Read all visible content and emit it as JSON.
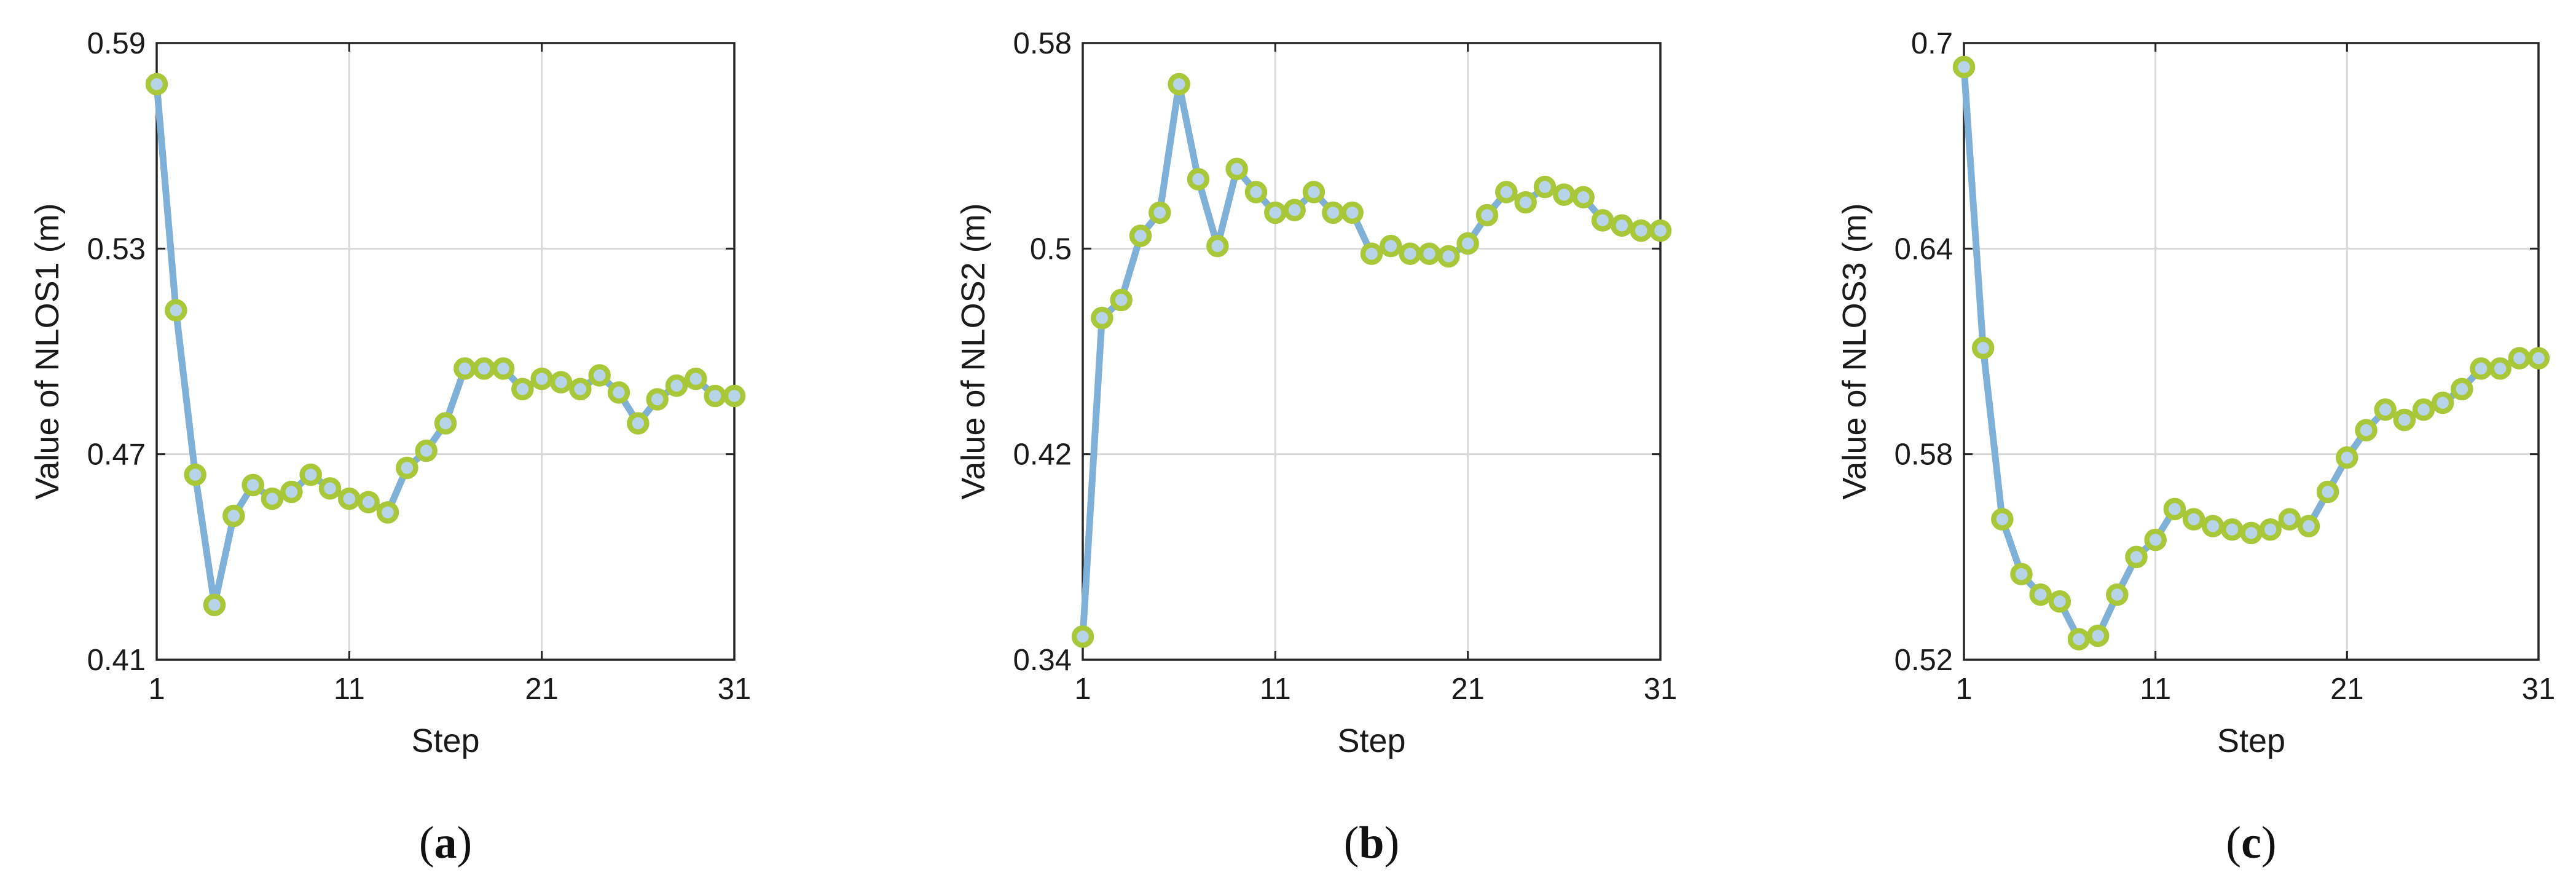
{
  "colors": {
    "line": "#7fb0d8",
    "marker_edge": "#a8c83a",
    "marker_face": "#b8d4e8",
    "grid": "#d9d9d9",
    "axes": "#262626"
  },
  "chart_data": [
    {
      "type": "line",
      "panel_label": "a",
      "xlabel": "Step",
      "ylabel": "Value of NLOS1 (m)",
      "xlim": [
        1,
        31
      ],
      "ylim": [
        0.41,
        0.59
      ],
      "xticks": [
        1,
        11,
        21,
        31
      ],
      "yticks": [
        "0.41",
        "0.47",
        "0.53",
        "0.59"
      ],
      "grid": true,
      "x": [
        1,
        2,
        3,
        4,
        5,
        6,
        7,
        8,
        9,
        10,
        11,
        12,
        13,
        14,
        15,
        16,
        17,
        18,
        19,
        20,
        21,
        22,
        23,
        24,
        25,
        26,
        27,
        28,
        29,
        30,
        31
      ],
      "values": [
        0.578,
        0.512,
        0.464,
        0.426,
        0.452,
        0.461,
        0.457,
        0.459,
        0.464,
        0.46,
        0.457,
        0.456,
        0.453,
        0.466,
        0.471,
        0.479,
        0.495,
        0.495,
        0.495,
        0.489,
        0.492,
        0.491,
        0.489,
        0.493,
        0.488,
        0.479,
        0.486,
        0.49,
        0.492,
        0.487,
        0.487
      ]
    },
    {
      "type": "line",
      "panel_label": "b",
      "xlabel": "Step",
      "ylabel": "Value of NLOS2 (m)",
      "xlim": [
        1,
        31
      ],
      "ylim": [
        0.34,
        0.58
      ],
      "xticks": [
        1,
        11,
        21,
        31
      ],
      "yticks": [
        "0.34",
        "0.42",
        "0.5",
        "0.58"
      ],
      "grid": true,
      "x": [
        1,
        2,
        3,
        4,
        5,
        6,
        7,
        8,
        9,
        10,
        11,
        12,
        13,
        14,
        15,
        16,
        17,
        18,
        19,
        20,
        21,
        22,
        23,
        24,
        25,
        26,
        27,
        28,
        29,
        30,
        31
      ],
      "values": [
        0.349,
        0.473,
        0.48,
        0.505,
        0.514,
        0.564,
        0.527,
        0.501,
        0.531,
        0.522,
        0.514,
        0.515,
        0.522,
        0.514,
        0.514,
        0.498,
        0.501,
        0.498,
        0.498,
        0.497,
        0.502,
        0.513,
        0.522,
        0.518,
        0.524,
        0.521,
        0.52,
        0.511,
        0.509,
        0.507,
        0.507
      ]
    },
    {
      "type": "line",
      "panel_label": "c",
      "xlabel": "Step",
      "ylabel": "Value of NLOS3 (m)",
      "xlim": [
        1,
        31
      ],
      "ylim": [
        0.52,
        0.7
      ],
      "xticks": [
        1,
        11,
        21,
        31
      ],
      "yticks": [
        "0.52",
        "0.58",
        "0.64",
        "0.7"
      ],
      "grid": true,
      "x": [
        1,
        2,
        3,
        4,
        5,
        6,
        7,
        8,
        9,
        10,
        11,
        12,
        13,
        14,
        15,
        16,
        17,
        18,
        19,
        20,
        21,
        22,
        23,
        24,
        25,
        26,
        27,
        28,
        29,
        30,
        31
      ],
      "values": [
        0.693,
        0.611,
        0.561,
        0.545,
        0.539,
        0.537,
        0.526,
        0.527,
        0.539,
        0.55,
        0.555,
        0.564,
        0.561,
        0.559,
        0.558,
        0.557,
        0.558,
        0.561,
        0.559,
        0.569,
        0.579,
        0.587,
        0.593,
        0.59,
        0.593,
        0.595,
        0.599,
        0.605,
        0.605,
        0.608,
        0.608
      ]
    }
  ]
}
